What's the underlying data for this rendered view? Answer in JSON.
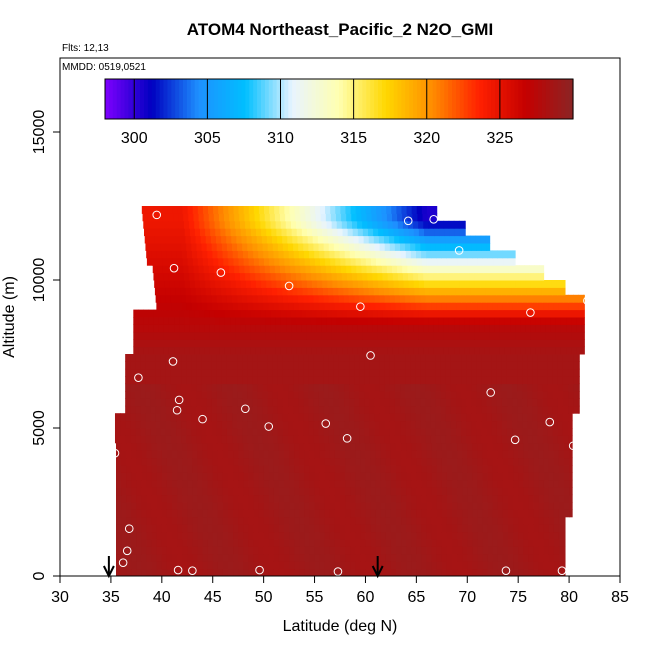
{
  "chart_data": {
    "type": "heatmap",
    "title": "ATOM4 Northeast_Pacific_2 N2O_GMI",
    "flights_label": "Flts: 12,13",
    "mmdd_label": "MMDD: 0519,0521",
    "xlabel": "Latitude (deg N)",
    "ylabel": "Altitude (m)",
    "xlim": [
      30,
      85
    ],
    "ylim": [
      0,
      17500
    ],
    "xticks": [
      "30",
      "35",
      "40",
      "45",
      "50",
      "55",
      "60",
      "65",
      "70",
      "75",
      "80",
      "85"
    ],
    "yticks": [
      "0",
      "5000",
      "10000",
      "15000"
    ],
    "colorbar": {
      "range": [
        298,
        330
      ],
      "tick_values": [
        300,
        305,
        310,
        315,
        320,
        325
      ],
      "tick_labels": [
        "300",
        "305",
        "310",
        "315",
        "320",
        "325"
      ],
      "colors": [
        "#7f00ff",
        "#0000c0",
        "#1e90ff",
        "#00bfff",
        "#e8f4ff",
        "#ffffb0",
        "#ffd700",
        "#ff8c00",
        "#ff2000",
        "#c40000",
        "#8b2525"
      ]
    },
    "arrows_latitude": [
      34.8,
      61.2
    ],
    "sample_points": [
      {
        "x": 39.5,
        "y": 12200
      },
      {
        "x": 41.2,
        "y": 10400
      },
      {
        "x": 45.8,
        "y": 10250
      },
      {
        "x": 52.5,
        "y": 9800
      },
      {
        "x": 59.5,
        "y": 9100
      },
      {
        "x": 64.2,
        "y": 12000
      },
      {
        "x": 66.7,
        "y": 12050
      },
      {
        "x": 69.2,
        "y": 11000
      },
      {
        "x": 76.2,
        "y": 8900
      },
      {
        "x": 81.8,
        "y": 9300
      },
      {
        "x": 37.7,
        "y": 6700
      },
      {
        "x": 41.1,
        "y": 7250
      },
      {
        "x": 41.7,
        "y": 5950
      },
      {
        "x": 41.5,
        "y": 5600
      },
      {
        "x": 44.0,
        "y": 5300
      },
      {
        "x": 48.2,
        "y": 5650
      },
      {
        "x": 50.5,
        "y": 5050
      },
      {
        "x": 56.1,
        "y": 5150
      },
      {
        "x": 58.2,
        "y": 4650
      },
      {
        "x": 60.5,
        "y": 7450
      },
      {
        "x": 72.3,
        "y": 6200
      },
      {
        "x": 74.7,
        "y": 4600
      },
      {
        "x": 78.1,
        "y": 5200
      },
      {
        "x": 80.4,
        "y": 4400
      },
      {
        "x": 35.4,
        "y": 4150
      },
      {
        "x": 36.8,
        "y": 1600
      },
      {
        "x": 36.6,
        "y": 850
      },
      {
        "x": 36.2,
        "y": 450
      },
      {
        "x": 41.6,
        "y": 200
      },
      {
        "x": 43.0,
        "y": 180
      },
      {
        "x": 49.6,
        "y": 200
      },
      {
        "x": 57.3,
        "y": 150
      },
      {
        "x": 73.8,
        "y": 180
      },
      {
        "x": 79.3,
        "y": 180
      }
    ]
  }
}
